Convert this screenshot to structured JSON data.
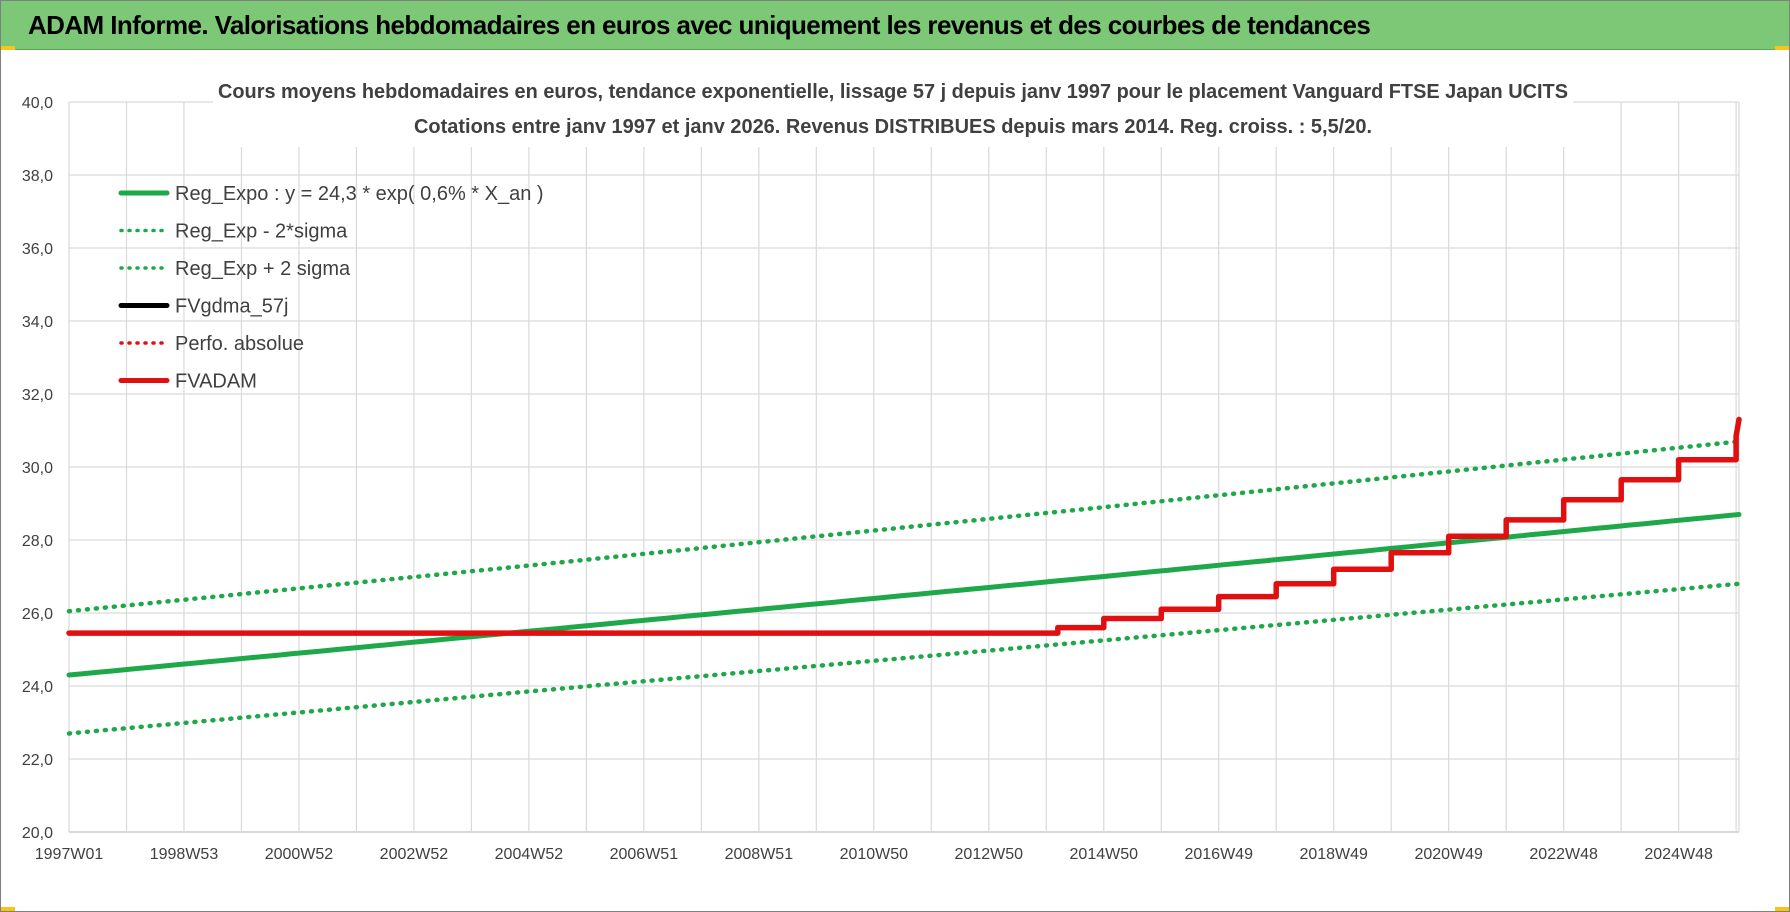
{
  "header": {
    "title": "ADAM Informe. Valorisations hebdomadaires en euros avec uniquement les revenus et des courbes de tendances"
  },
  "chart_data": {
    "type": "line",
    "title": "Cours moyens hebdomadaires en euros, tendance exponentielle, lissage 57 j depuis janv 1997 pour le placement Vanguard FTSE Japan UCITS",
    "subtitle": "Cotations entre janv 1997 et janv 2026. Revenus DISTRIBUES depuis mars 2014.  Reg. croiss. : 5,5/20.",
    "xlabel": "",
    "ylabel": "",
    "x_ticks": [
      "1997W01",
      "1998W53",
      "2000W52",
      "2002W52",
      "2004W52",
      "2006W51",
      "2008W51",
      "2010W50",
      "2012W50",
      "2014W50",
      "2016W49",
      "2018W49",
      "2020W49",
      "2022W48",
      "2024W48"
    ],
    "x_range": [
      1997.0,
      2026.05
    ],
    "ylim": [
      20,
      40
    ],
    "y_ticks": [
      "20,0",
      "22,0",
      "24,0",
      "26,0",
      "28,0",
      "30,0",
      "32,0",
      "34,0",
      "36,0",
      "38,0",
      "40,0"
    ],
    "grid": true,
    "legend_position": "top-left",
    "legend": [
      {
        "label": "Reg_Expo : y = 24,3 * exp( 0,6% *  X_an )",
        "color": "#1fa84a",
        "style": "solid"
      },
      {
        "label": "Reg_Exp - 2*sigma",
        "color": "#1fa84a",
        "style": "dotted"
      },
      {
        "label": "Reg_Exp + 2 sigma",
        "color": "#1fa84a",
        "style": "dotted"
      },
      {
        "label": "FVgdma_57j",
        "color": "#000000",
        "style": "solid"
      },
      {
        "label": "Perfo. absolue",
        "color": "#e01010",
        "style": "dotted"
      },
      {
        "label": "FVADAM",
        "color": "#e01010",
        "style": "solid"
      }
    ],
    "series": [
      {
        "name": "Reg_Expo : y = 24,3 * exp( 0,6% *  X_an )",
        "x": [
          1997.0,
          2005.0,
          2015.0,
          2026.05
        ],
        "values": [
          24.3,
          25.5,
          27.0,
          28.7
        ]
      },
      {
        "name": "Reg_Exp - 2*sigma",
        "x": [
          1997.0,
          2005.0,
          2015.0,
          2026.05
        ],
        "values": [
          22.7,
          23.85,
          25.25,
          26.8
        ]
      },
      {
        "name": "Reg_Exp + 2 sigma",
        "x": [
          1997.0,
          2005.0,
          2015.0,
          2026.05
        ],
        "values": [
          26.05,
          27.3,
          28.9,
          30.7
        ]
      },
      {
        "name": "FVADAM",
        "x": [
          1997.0,
          2013.9,
          2014.2,
          2015.0,
          2016.0,
          2017.0,
          2018.0,
          2019.0,
          2020.0,
          2021.0,
          2022.0,
          2023.0,
          2024.0,
          2025.0,
          2026.0,
          2026.05
        ],
        "values": [
          25.45,
          25.45,
          25.6,
          25.85,
          26.1,
          26.45,
          26.8,
          27.2,
          27.65,
          28.1,
          28.55,
          29.1,
          29.65,
          30.2,
          30.85,
          31.3
        ]
      }
    ]
  },
  "colors": {
    "header_bg": "#7dc876",
    "green": "#1fa84a",
    "red": "#e01010",
    "grid": "#d9d9d9"
  }
}
